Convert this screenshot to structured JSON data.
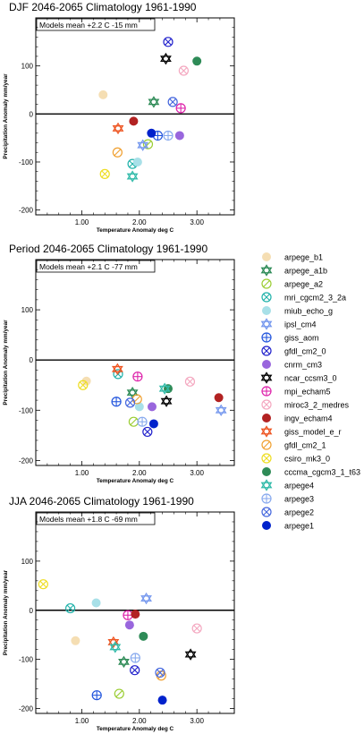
{
  "chart_data": [
    {
      "type": "scatter",
      "title": "DJF 2046-2065  Climatology 1961-1990",
      "info": "Models mean +2.2 C  -15 mm",
      "xlabel": "Temperature Anomaly deg C",
      "ylabel": "Precipitation Anomaly mm/year",
      "xlim": [
        0.2,
        3.65
      ],
      "ylim": [
        -210,
        200
      ],
      "xticks": [
        1.0,
        2.0,
        3.0
      ],
      "xtick_labels": [
        "1.00",
        "2.00",
        "3.00"
      ],
      "yticks": [
        -200,
        -100,
        0,
        100
      ],
      "ytick_labels": [
        "-200",
        "-100",
        "0",
        "100"
      ],
      "points": [
        {
          "model": "arpege_b1",
          "x": 1.37,
          "y": 40
        },
        {
          "model": "arpege_a1b",
          "x": 2.25,
          "y": 25
        },
        {
          "model": "arpege_a2",
          "x": 2.15,
          "y": -63
        },
        {
          "model": "mri_cgcm2_3_2a",
          "x": 1.88,
          "y": -104
        },
        {
          "model": "miub_echo_g",
          "x": 1.97,
          "y": -100
        },
        {
          "model": "ipsl_cm4",
          "x": 2.06,
          "y": -65
        },
        {
          "model": "giss_aom",
          "x": 2.32,
          "y": -45
        },
        {
          "model": "gfdl_cm2_0",
          "x": 2.5,
          "y": 150
        },
        {
          "model": "cnrm_cm3",
          "x": 2.7,
          "y": -45
        },
        {
          "model": "ncar_ccsm3_0",
          "x": 2.46,
          "y": 115
        },
        {
          "model": "mpi_echam5",
          "x": 2.72,
          "y": 12
        },
        {
          "model": "miroc3_2_medres",
          "x": 2.77,
          "y": 90
        },
        {
          "model": "ingv_echam4",
          "x": 1.9,
          "y": -15
        },
        {
          "model": "giss_model_e_r",
          "x": 1.63,
          "y": -30
        },
        {
          "model": "gfdl_cm2_1",
          "x": 1.62,
          "y": -80
        },
        {
          "model": "csiro_mk3_0",
          "x": 1.4,
          "y": -125
        },
        {
          "model": "cccma_cgcm3_1_t63",
          "x": 3.0,
          "y": 110
        },
        {
          "model": "arpege4",
          "x": 1.88,
          "y": -130
        },
        {
          "model": "arpege3",
          "x": 2.5,
          "y": -45
        },
        {
          "model": "arpege2",
          "x": 2.58,
          "y": 25
        },
        {
          "model": "arpege1",
          "x": 2.21,
          "y": -40
        }
      ]
    },
    {
      "type": "scatter",
      "title": "Period 2046-2065  Climatology 1961-1990",
      "info": "Models mean +2.1 C  -77 mm",
      "xlabel": "Temperature Anomaly deg C",
      "ylabel": "Precipitation Anomaly mm/year",
      "xlim": [
        0.2,
        3.65
      ],
      "ylim": [
        -210,
        200
      ],
      "xticks": [
        1.0,
        2.0,
        3.0
      ],
      "xtick_labels": [
        "1.00",
        "2.00",
        "3.00"
      ],
      "yticks": [
        -200,
        -100,
        0,
        100
      ],
      "ytick_labels": [
        "-200",
        "-100",
        "0",
        "100"
      ],
      "points": [
        {
          "model": "arpege_b1",
          "x": 1.08,
          "y": -42
        },
        {
          "model": "arpege_a1b",
          "x": 1.88,
          "y": -65
        },
        {
          "model": "arpege_a2",
          "x": 1.9,
          "y": -123
        },
        {
          "model": "mri_cgcm2_3_2a",
          "x": 1.63,
          "y": -28
        },
        {
          "model": "miub_echo_g",
          "x": 2.0,
          "y": -93
        },
        {
          "model": "ipsl_cm4",
          "x": 3.42,
          "y": -100
        },
        {
          "model": "giss_aom",
          "x": 1.6,
          "y": -83
        },
        {
          "model": "gfdl_cm2_0",
          "x": 2.14,
          "y": -143
        },
        {
          "model": "cnrm_cm3",
          "x": 2.22,
          "y": -93
        },
        {
          "model": "ncar_ccsm3_0",
          "x": 2.47,
          "y": -82
        },
        {
          "model": "mpi_echam5",
          "x": 1.97,
          "y": -33
        },
        {
          "model": "miroc3_2_medres",
          "x": 2.88,
          "y": -43
        },
        {
          "model": "ingv_echam4",
          "x": 3.38,
          "y": -75
        },
        {
          "model": "giss_model_e_r",
          "x": 1.62,
          "y": -18
        },
        {
          "model": "gfdl_cm2_1",
          "x": 1.96,
          "y": -78
        },
        {
          "model": "csiro_mk3_0",
          "x": 1.02,
          "y": -50
        },
        {
          "model": "cccma_cgcm3_1_t63",
          "x": 2.5,
          "y": -57
        },
        {
          "model": "arpege4",
          "x": 2.44,
          "y": -57
        },
        {
          "model": "arpege3",
          "x": 2.05,
          "y": -123
        },
        {
          "model": "arpege2",
          "x": 1.84,
          "y": -85
        },
        {
          "model": "arpege1",
          "x": 2.25,
          "y": -127
        }
      ]
    },
    {
      "type": "scatter",
      "title": "JJA 2046-2065  Climatology 1961-1990",
      "info": "Models mean +1.8 C  -69 mm",
      "xlabel": "Temperature Anomaly deg C",
      "ylabel": "Precipitation Anomaly mm/year",
      "xlim": [
        0.2,
        3.65
      ],
      "ylim": [
        -210,
        200
      ],
      "xticks": [
        1.0,
        2.0,
        3.0
      ],
      "xtick_labels": [
        "1.00",
        "2.00",
        "3.00"
      ],
      "yticks": [
        -200,
        -100,
        0,
        100
      ],
      "ytick_labels": [
        "-200",
        "-100",
        "0",
        "100"
      ],
      "points": [
        {
          "model": "arpege_b1",
          "x": 0.89,
          "y": -62
        },
        {
          "model": "arpege_a1b",
          "x": 1.73,
          "y": -105
        },
        {
          "model": "arpege_a2",
          "x": 1.65,
          "y": -170
        },
        {
          "model": "mri_cgcm2_3_2a",
          "x": 0.8,
          "y": 4
        },
        {
          "model": "miub_echo_g",
          "x": 1.25,
          "y": 15
        },
        {
          "model": "ipsl_cm4",
          "x": 2.12,
          "y": 24
        },
        {
          "model": "giss_aom",
          "x": 1.26,
          "y": -173
        },
        {
          "model": "gfdl_cm2_0",
          "x": 1.92,
          "y": -122
        },
        {
          "model": "cnrm_cm3",
          "x": 1.83,
          "y": -30
        },
        {
          "model": "ncar_ccsm3_0",
          "x": 2.89,
          "y": -90
        },
        {
          "model": "mpi_echam5",
          "x": 1.8,
          "y": -10
        },
        {
          "model": "miroc3_2_medres",
          "x": 3.0,
          "y": -37
        },
        {
          "model": "ingv_echam4",
          "x": 1.93,
          "y": -8
        },
        {
          "model": "giss_model_e_r",
          "x": 1.55,
          "y": -65
        },
        {
          "model": "gfdl_cm2_1",
          "x": 2.38,
          "y": -133
        },
        {
          "model": "csiro_mk3_0",
          "x": 0.33,
          "y": 53
        },
        {
          "model": "cccma_cgcm3_1_t63",
          "x": 2.07,
          "y": -53
        },
        {
          "model": "arpege4",
          "x": 1.58,
          "y": -75
        },
        {
          "model": "arpege3",
          "x": 1.93,
          "y": -97
        },
        {
          "model": "arpege2",
          "x": 2.36,
          "y": -127
        },
        {
          "model": "arpege1",
          "x": 2.4,
          "y": -183
        }
      ]
    }
  ],
  "legend": [
    {
      "model": "arpege_b1",
      "marker": "filled-circle",
      "color": "#f5deb3"
    },
    {
      "model": "arpege_a1b",
      "marker": "star-of-david",
      "color": "#2e8b57"
    },
    {
      "model": "arpege_a2",
      "marker": "circle-slash",
      "color": "#9acd32"
    },
    {
      "model": "mri_cgcm2_3_2a",
      "marker": "circle-x",
      "color": "#20b2aa"
    },
    {
      "model": "miub_echo_g",
      "marker": "filled-circle",
      "color": "#a8e0e8"
    },
    {
      "model": "ipsl_cm4",
      "marker": "star-of-david",
      "color": "#7799ee"
    },
    {
      "model": "giss_aom",
      "marker": "circle-plus",
      "color": "#2255dd"
    },
    {
      "model": "gfdl_cm2_0",
      "marker": "circle-x",
      "color": "#2222cc"
    },
    {
      "model": "cnrm_cm3",
      "marker": "filled-circle",
      "color": "#9966dd"
    },
    {
      "model": "ncar_ccsm3_0",
      "marker": "star-of-david",
      "color": "#000000"
    },
    {
      "model": "mpi_echam5",
      "marker": "circle-plus",
      "color": "#dd22aa"
    },
    {
      "model": "miroc3_2_medres",
      "marker": "circle-x",
      "color": "#f4a8c0"
    },
    {
      "model": "ingv_echam4",
      "marker": "filled-circle",
      "color": "#b22222"
    },
    {
      "model": "giss_model_e_r",
      "marker": "star-of-david",
      "color": "#ee5522"
    },
    {
      "model": "gfdl_cm2_1",
      "marker": "circle-slash",
      "color": "#f0a030"
    },
    {
      "model": "csiro_mk3_0",
      "marker": "circle-x",
      "color": "#eedd22"
    },
    {
      "model": "cccma_cgcm3_1_t63",
      "marker": "filled-circle",
      "color": "#2e8b57"
    },
    {
      "model": "arpege4",
      "marker": "star-of-david",
      "color": "#33bbaa"
    },
    {
      "model": "arpege3",
      "marker": "circle-plus",
      "color": "#88aaee"
    },
    {
      "model": "arpege2",
      "marker": "circle-x",
      "color": "#4466dd"
    },
    {
      "model": "arpege1",
      "marker": "filled-circle",
      "color": "#0022cc"
    }
  ]
}
